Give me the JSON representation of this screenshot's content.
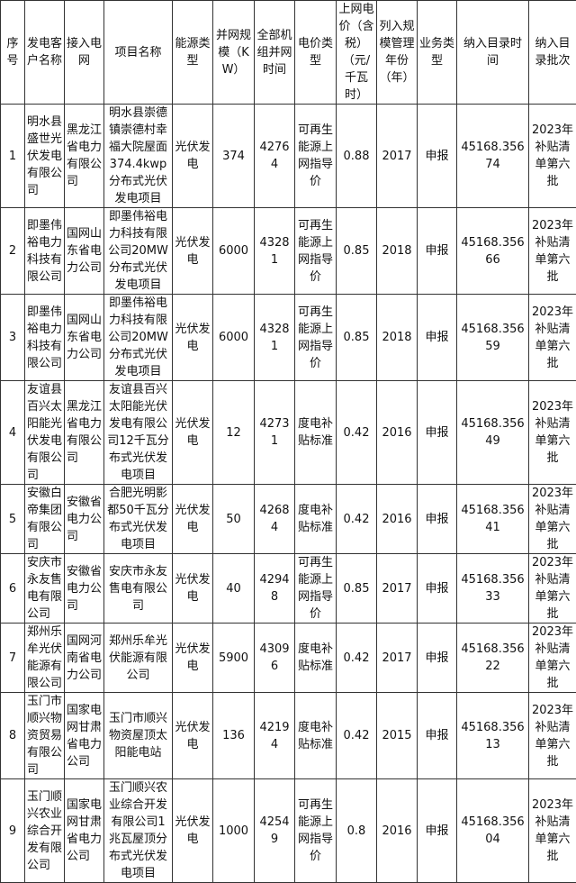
{
  "headers": [
    "序号",
    "发电客户名称",
    "接入电网",
    "项目名称",
    "能源类型",
    "并网规模（KW）",
    "全部机组并网时间",
    "电价类型",
    "上网电价（含税）（元/千瓦时）",
    "列入规模管理年份（年）",
    "业务类型",
    "纳入目录时间",
    "纳入目录批次"
  ],
  "rows": [
    [
      "1",
      "明水县盛世光伏发电有限公司",
      "黑龙江省电力有限公司",
      "明水县崇德镇崇德村幸福大院屋面374.4kwp分布式光伏发电项目",
      "光伏发电",
      "374",
      "42764",
      "可再生能源上网指导价",
      "0.88",
      "2017",
      "申报",
      "45168.35674",
      "2023年补贴清单第六批"
    ],
    [
      "2",
      "即墨伟裕电力科技有限公司",
      "国网山东省电力公司",
      "即墨伟裕电力科技有限公司20MW分布式光伏发电项目",
      "光伏发电",
      "6000",
      "43281",
      "可再生能源上网指导价",
      "0.85",
      "2018",
      "申报",
      "45168.35666",
      "2023年补贴清单第六批"
    ],
    [
      "3",
      "即墨伟裕电力科技有限公司",
      "国网山东省电力公司",
      "即墨伟裕电力科技有限公司20MW分布式光伏发电项目",
      "光伏发电",
      "6000",
      "43281",
      "可再生能源上网指导价",
      "0.85",
      "2018",
      "申报",
      "45168.35659",
      "2023年补贴清单第六批"
    ],
    [
      "4",
      "友谊县百兴太阳能光伏发电有限公司",
      "黑龙江省电力有限公司",
      "友谊县百兴太阳能光伏发电有限公司12千瓦分布式光伏发电项目",
      "光伏发电",
      "12",
      "42731",
      "度电补贴标准",
      "0.42",
      "2016",
      "申报",
      "45168.35649",
      "2023年补贴清单第六批"
    ],
    [
      "5",
      "安徽白帝集团有限公司",
      "安徽省电力公司",
      "合肥光明影都50千瓦分布式光伏发电项目",
      "光伏发电",
      "50",
      "42684",
      "度电补贴标准",
      "0.42",
      "2016",
      "申报",
      "45168.35641",
      "2023年补贴清单第六批"
    ],
    [
      "6",
      "安庆市永友售电有限公司",
      "安徽省电力公司",
      "安庆市永友售电有限公司",
      "光伏发电",
      "40",
      "42948",
      "可再生能源上网指导价",
      "0.85",
      "2017",
      "申报",
      "45168.35633",
      "2023年补贴清单第六批"
    ],
    [
      "7",
      "郑州乐牟光伏能源有限公司",
      "国网河南省电力公司",
      "郑州乐牟光伏能源有限公司",
      "光伏发电",
      "5900",
      "43096",
      "度电补贴标准",
      "0.42",
      "2017",
      "申报",
      "45168.35622",
      "2023年补贴清单第六批"
    ],
    [
      "8",
      "玉门市顺兴物资贸易有限公司",
      "国家电网甘肃省电力公司",
      "玉门市顺兴物资屋顶太阳能电站",
      "光伏发电",
      "136",
      "42194",
      "度电补贴标准",
      "0.42",
      "2015",
      "申报",
      "45168.35613",
      "2023年补贴清单第六批"
    ],
    [
      "9",
      "玉门顺兴农业综合开发有限公司",
      "国家电网甘肃省电力公司",
      "玉门顺兴农业综合开发有限公司1兆瓦屋顶分布式光伏发电项目",
      "光伏发电",
      "1000",
      "42549",
      "可再生能源上网指导价",
      "0.8",
      "2016",
      "申报",
      "45168.35604",
      "2023年补贴清单第六批"
    ]
  ]
}
